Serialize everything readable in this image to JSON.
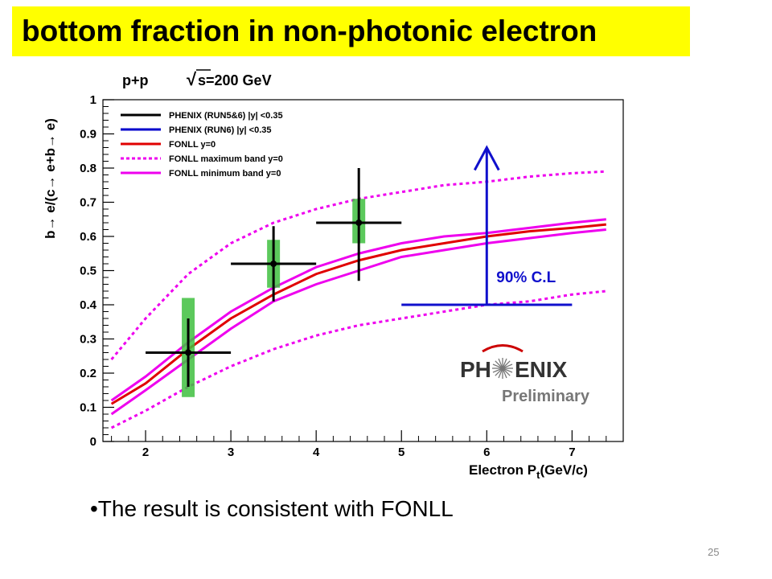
{
  "slide": {
    "title": "bottom fraction in non-photonic electron",
    "bullet": "•The result is consistent with FONLL",
    "page_number": "25",
    "title_bg": "#ffff00"
  },
  "chart_data": {
    "type": "line",
    "header": "p+p",
    "energy_label": "s=200 GeV",
    "energy_prefix": "√",
    "xlabel_main": "Electron P",
    "xlabel_sub": "t",
    "xlabel_unit": "(GeV/c)",
    "ylabel": "b→ e/(c→ e+b→ e)",
    "xlim": [
      1.5,
      7.6
    ],
    "ylim": [
      0,
      1.0
    ],
    "xticks": [
      2,
      3,
      4,
      5,
      6,
      7
    ],
    "yticks": [
      0,
      0.1,
      0.2,
      0.3,
      0.4,
      0.5,
      0.6,
      0.7,
      0.8,
      0.9,
      1
    ],
    "legend_position": "top-left",
    "legend": [
      {
        "label": "PHENIX (RUN5&6) |y| <0.35",
        "color": "#000000",
        "style": "solid"
      },
      {
        "label": "PHENIX (RUN6) |y| <0.35",
        "color": "#0000cc",
        "style": "solid"
      },
      {
        "label": "FONLL y=0",
        "color": "#e00000",
        "style": "solid"
      },
      {
        "label": "FONLL maximum band y=0",
        "color": "#ee00ee",
        "style": "dotted"
      },
      {
        "label": "FONLL minimum band y=0",
        "color": "#ee00ee",
        "style": "solid"
      }
    ],
    "points": [
      {
        "x": 2.5,
        "y": 0.26,
        "xerr_low": 0.5,
        "xerr_high": 0.5,
        "yerr_low": 0.1,
        "yerr_high": 0.1,
        "sys_low": 0.13,
        "sys_high": 0.42
      },
      {
        "x": 3.5,
        "y": 0.52,
        "xerr_low": 0.5,
        "xerr_high": 0.5,
        "yerr_low": 0.11,
        "yerr_high": 0.11,
        "sys_low": 0.45,
        "sys_high": 0.59
      },
      {
        "x": 4.5,
        "y": 0.64,
        "xerr_low": 0.5,
        "xerr_high": 0.5,
        "yerr_low": 0.17,
        "yerr_high": 0.16,
        "sys_low": 0.58,
        "sys_high": 0.71
      }
    ],
    "limit": {
      "x": 6.0,
      "x_low": 5.0,
      "x_high": 7.0,
      "y_low": 0.4,
      "y_high": 0.86,
      "label": "90% C.L"
    },
    "series": [
      {
        "name": "FONLL y=0",
        "color": "#e00000",
        "style": "solid",
        "x": [
          1.6,
          2.0,
          2.5,
          3.0,
          3.5,
          4.0,
          4.5,
          5.0,
          5.5,
          6.0,
          6.5,
          7.0,
          7.4
        ],
        "y": [
          0.11,
          0.17,
          0.27,
          0.36,
          0.43,
          0.49,
          0.53,
          0.56,
          0.58,
          0.6,
          0.615,
          0.625,
          0.635
        ]
      },
      {
        "name": "FONLL maximum band y=0",
        "color": "#ee00ee",
        "style": "dotted",
        "x": [
          1.6,
          2.0,
          2.5,
          3.0,
          3.5,
          4.0,
          4.5,
          5.0,
          5.5,
          6.0,
          6.5,
          7.0,
          7.4
        ],
        "y": [
          0.24,
          0.36,
          0.49,
          0.58,
          0.64,
          0.68,
          0.71,
          0.73,
          0.75,
          0.76,
          0.775,
          0.785,
          0.79
        ]
      },
      {
        "name": "FONLL minimum band y=0",
        "color": "#ee00ee",
        "style": "solid",
        "x": [
          1.6,
          2.0,
          2.5,
          3.0,
          3.5,
          4.0,
          4.5,
          5.0,
          5.5,
          6.0,
          6.5,
          7.0,
          7.4
        ],
        "y": [
          0.12,
          0.19,
          0.29,
          0.38,
          0.45,
          0.51,
          0.55,
          0.58,
          0.6,
          0.61,
          0.625,
          0.64,
          0.65
        ]
      },
      {
        "name": "FONLL minimum band y=0",
        "color": "#ee00ee",
        "style": "solid",
        "x": [
          1.6,
          2.0,
          2.5,
          3.0,
          3.5,
          4.0,
          4.5,
          5.0,
          5.5,
          6.0,
          6.5,
          7.0,
          7.4
        ],
        "y": [
          0.08,
          0.15,
          0.24,
          0.33,
          0.41,
          0.46,
          0.5,
          0.54,
          0.56,
          0.58,
          0.595,
          0.61,
          0.62
        ]
      },
      {
        "name": "FONLL maximum band y=0",
        "color": "#ee00ee",
        "style": "dotted",
        "x": [
          1.6,
          2.0,
          2.5,
          3.0,
          3.5,
          4.0,
          4.5,
          5.0,
          5.5,
          6.0,
          6.5,
          7.0,
          7.4
        ],
        "y": [
          0.04,
          0.09,
          0.16,
          0.22,
          0.27,
          0.31,
          0.34,
          0.36,
          0.38,
          0.4,
          0.41,
          0.43,
          0.44
        ]
      }
    ],
    "logo": {
      "name": "PHENIX",
      "left": "PH",
      "right": "ENIX",
      "sub": "Preliminary"
    }
  }
}
